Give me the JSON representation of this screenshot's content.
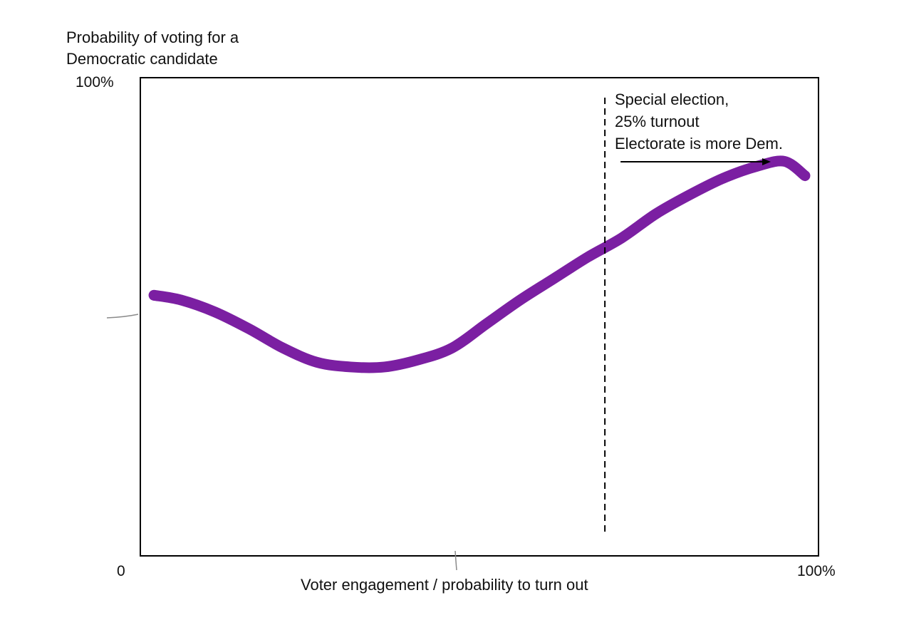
{
  "chart_data": {
    "type": "line",
    "ylabel_lines": [
      "Probability of voting for a",
      "Democratic candidate"
    ],
    "xlabel": "Voter engagement / probability to turn out",
    "y_tick_top": "100%",
    "x_tick_start": "0",
    "x_tick_end": "100%",
    "xlim": [
      0,
      100
    ],
    "ylim": [
      0,
      100
    ],
    "grid": false,
    "series": [
      {
        "color": "#7b1fa2",
        "x": [
          2,
          6,
          11,
          16,
          21,
          26,
          31,
          36,
          41,
          46,
          51,
          56,
          61,
          66,
          71,
          76,
          81,
          86,
          91,
          95,
          98
        ],
        "y": [
          54.5,
          53.5,
          51,
          47.5,
          43.5,
          40.5,
          39.5,
          39.5,
          41,
          43.5,
          48.5,
          53.5,
          58,
          62.5,
          66.5,
          71.5,
          75.5,
          79,
          81.5,
          82.5,
          79.5
        ]
      }
    ],
    "annotation": {
      "x": 68.5,
      "lines": [
        "Special election,",
        "25% turnout",
        "Electorate is more Dem."
      ],
      "arrow_direction": "right"
    }
  }
}
